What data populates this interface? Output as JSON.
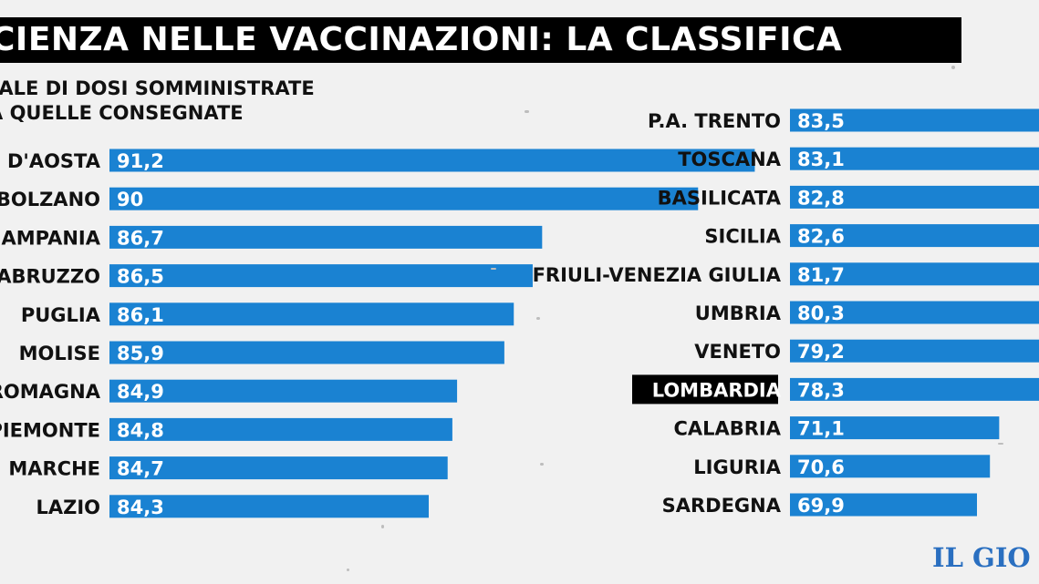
{
  "title": "CIENZA NELLE VACCINAZIONI: LA CLASSIFICA",
  "subtitle_line1": "UALE DI DOSI SOMMINISTRATE",
  "subtitle_line2": "A QUELLE CONSEGNATE",
  "logo": "IL GIO",
  "colors": {
    "bar": "#1a82d2",
    "highlight_bg": "#000000",
    "text": "#111111"
  },
  "chart_data": {
    "type": "bar",
    "orientation": "horizontal",
    "title": "CIENZA NELLE VACCINAZIONI: LA CLASSIFICA",
    "grid": false,
    "left": {
      "categories": [
        "E D'AOSTA",
        "BOLZANO",
        "AMPANIA",
        "ABRUZZO",
        "PUGLIA",
        "MOLISE",
        "ROMAGNA",
        "PIEMONTE",
        "MARCHE",
        "LAZIO"
      ],
      "values": [
        91.2,
        90,
        86.7,
        86.5,
        86.1,
        85.9,
        84.9,
        84.8,
        84.7,
        84.3
      ],
      "value_labels": [
        "91,2",
        "90",
        "86,7",
        "86,5",
        "86,1",
        "85,9",
        "84,9",
        "84,8",
        "84,7",
        "84,3"
      ]
    },
    "right": {
      "categories": [
        "P.A. TRENTO",
        "TOSCANA",
        "BASILICATA",
        "SICILIA",
        "FRIULI-VENEZIA GIULIA",
        "UMBRIA",
        "VENETO",
        "LOMBARDIA",
        "CALABRIA",
        "LIGURIA",
        "SARDEGNA"
      ],
      "values": [
        83.5,
        83.1,
        82.8,
        82.6,
        81.7,
        80.3,
        79.2,
        78.3,
        71.1,
        70.6,
        69.9
      ],
      "value_labels": [
        "83,5",
        "83,1",
        "82,8",
        "82,6",
        "81,7",
        "80,3",
        "79,2",
        "78,3",
        "71,1",
        "70,6",
        "69,9"
      ],
      "highlight": "LOMBARDIA"
    }
  }
}
